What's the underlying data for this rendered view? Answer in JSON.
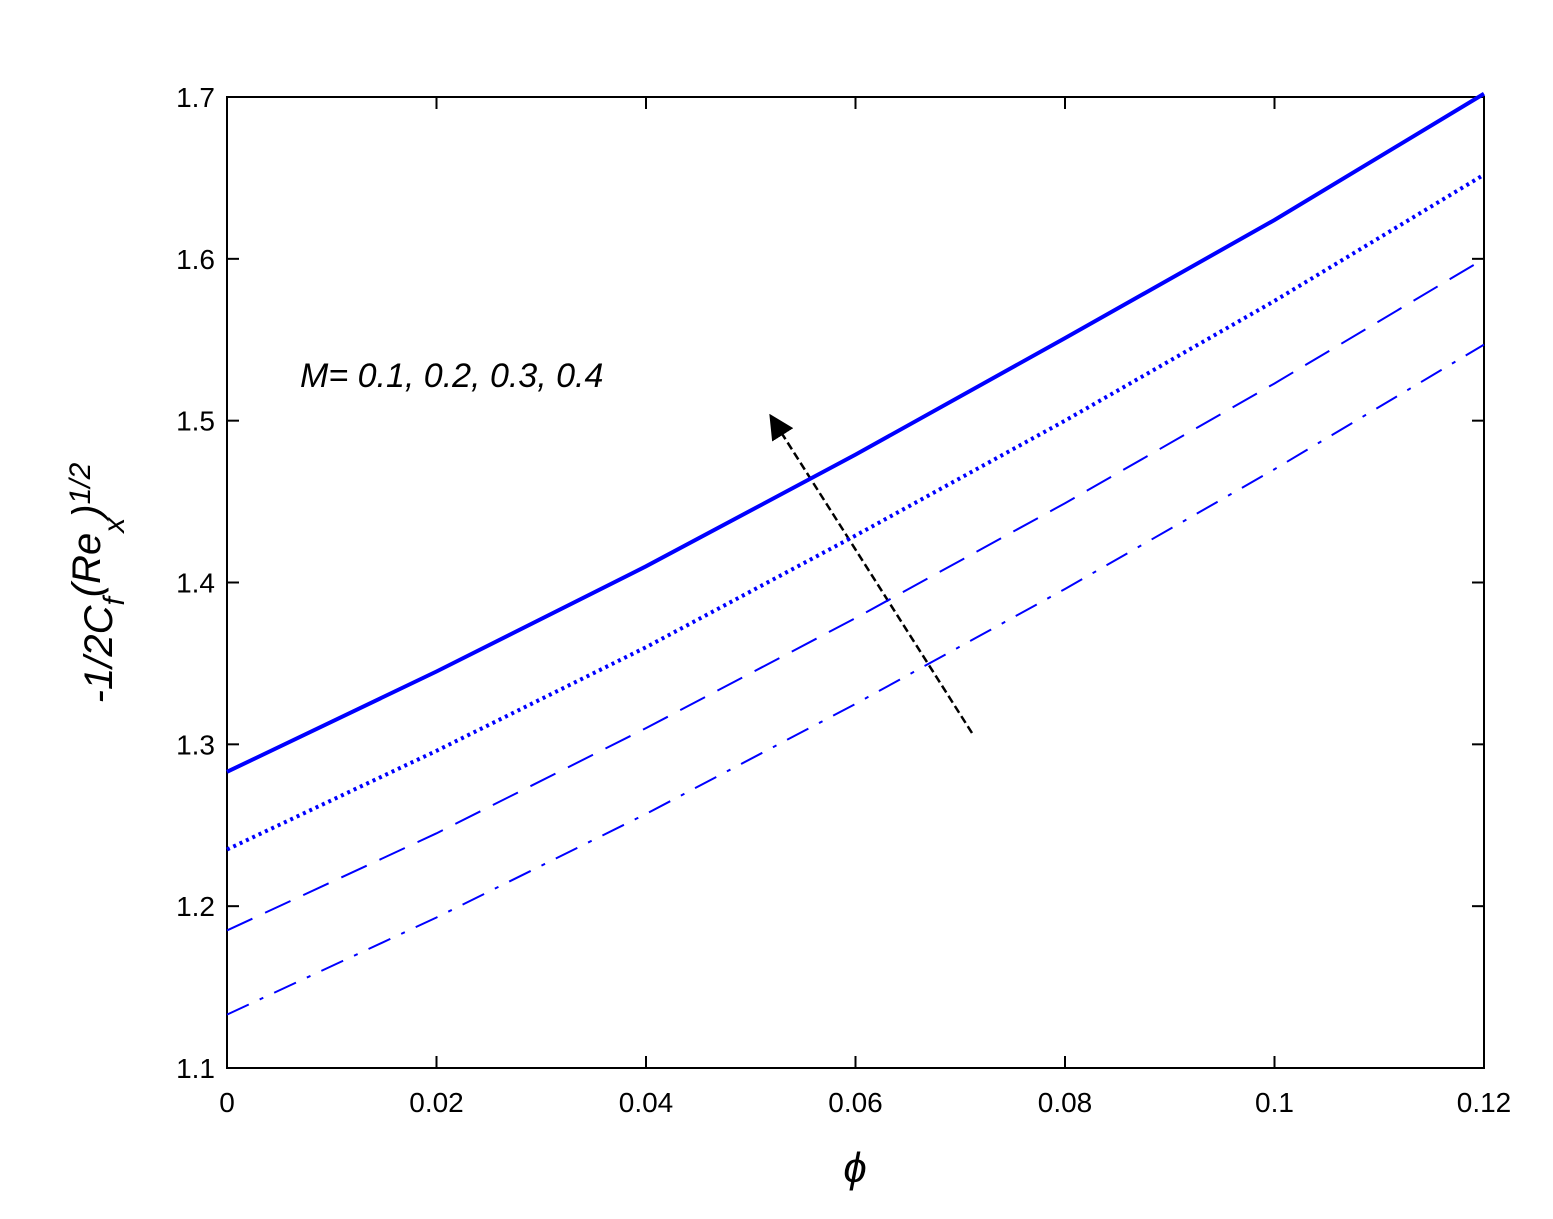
{
  "chart_data": {
    "type": "line",
    "annotation": "M= 0.1, 0.2, 0.3, 0.4",
    "xlabel": "ϕ",
    "ylabel_parts": [
      "-1/2C",
      "f",
      "(Re",
      "x",
      ")",
      "1/2"
    ],
    "x": [
      0,
      0.02,
      0.04,
      0.06,
      0.08,
      0.1,
      0.12
    ],
    "series": [
      {
        "color": "#0000ff",
        "linestyle": "solid",
        "values": [
          1.283,
          1.345,
          1.41,
          1.479,
          1.551,
          1.624,
          1.702
        ]
      },
      {
        "color": "#0000ff",
        "linestyle": "dotted",
        "values": [
          1.235,
          1.296,
          1.36,
          1.429,
          1.5,
          1.574,
          1.652
        ]
      },
      {
        "color": "#0000ff",
        "linestyle": "dashed",
        "values": [
          1.185,
          1.245,
          1.31,
          1.378,
          1.449,
          1.523,
          1.6
        ]
      },
      {
        "color": "#0000ff",
        "linestyle": "dashdot",
        "values": [
          1.133,
          1.193,
          1.257,
          1.325,
          1.396,
          1.47,
          1.547
        ]
      }
    ],
    "xlim": [
      0,
      0.12
    ],
    "ylim": [
      1.1,
      1.7
    ],
    "xticks": [
      0,
      0.02,
      0.04,
      0.06,
      0.08,
      0.1,
      0.12
    ],
    "yticks": [
      1.1,
      1.2,
      1.3,
      1.4,
      1.5,
      1.6,
      1.7
    ],
    "grid": false
  }
}
